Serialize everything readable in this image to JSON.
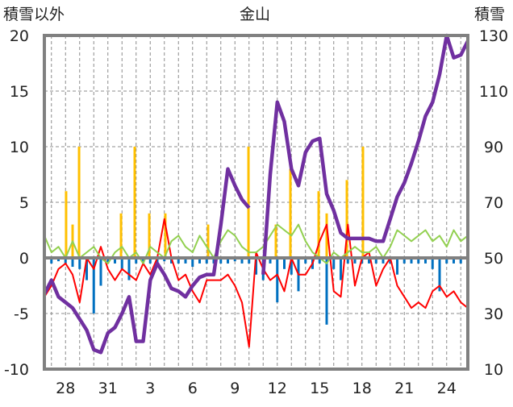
{
  "chart_data": {
    "type": "line",
    "title": "金山",
    "ylabel_left": "積雪以外",
    "ylabel_right": "積雪",
    "ylim_left": [
      -10,
      20
    ],
    "ylim_right": [
      10,
      130
    ],
    "yticks_left": [
      "20",
      "15",
      "10",
      "5",
      "0",
      "-5",
      "-10"
    ],
    "yticks_left_values": [
      20,
      15,
      10,
      5,
      0,
      -5,
      -10
    ],
    "yticks_right": [
      "130",
      "110",
      "90",
      "70",
      "50",
      "30",
      "10"
    ],
    "yticks_right_values": [
      130,
      110,
      90,
      70,
      50,
      30,
      10
    ],
    "xlim": [
      0,
      30
    ],
    "xticks": [
      "28",
      "31",
      "3",
      "6",
      "9",
      "12",
      "15",
      "18",
      "21",
      "24"
    ],
    "xticks_values": [
      1.5,
      4.5,
      7.5,
      10.5,
      13.5,
      16.5,
      19.5,
      22.5,
      25.5,
      28.5
    ],
    "grid": true,
    "x_start": 0,
    "x_step": 0.5,
    "series": [
      {
        "name": "red",
        "axis": "left",
        "kind": "line",
        "color": "#ff0000",
        "values": [
          -3.5,
          -2.5,
          -1,
          -0.5,
          -1.5,
          -4,
          0,
          -1,
          1,
          -1,
          -2,
          -1,
          -1.5,
          -2,
          -0.5,
          -1.5,
          0,
          3.5,
          0,
          -2,
          -1.5,
          -3,
          -4,
          -2,
          -2,
          -2,
          -1.5,
          -2.5,
          -4,
          -8,
          0.5,
          -1,
          -2,
          -1.5,
          -3,
          0,
          -1.5,
          -1.5,
          -0.5,
          1.5,
          3,
          -3,
          -3.5,
          3,
          -2.5,
          0,
          0.5,
          -2.5,
          -1,
          0,
          -2.5,
          -3.5,
          -4.5,
          -4,
          -4.5,
          -3,
          -2.5,
          -3.5,
          -3,
          -4,
          -4.5
        ]
      },
      {
        "name": "green",
        "axis": "left",
        "kind": "line",
        "color": "#92d050",
        "values": [
          2,
          0.5,
          1,
          0,
          1.5,
          0,
          0.5,
          1,
          0,
          -0.5,
          0.5,
          1,
          0,
          0.5,
          -0.5,
          1,
          0.5,
          0,
          1.5,
          2,
          1,
          0.5,
          2,
          1,
          0,
          1.5,
          2.5,
          2,
          1,
          0.5,
          0.5,
          1,
          2,
          3,
          2.5,
          2,
          3,
          1.5,
          0.5,
          0,
          -0.5,
          0.5,
          0,
          0.5,
          1,
          0.5,
          0.5,
          1,
          0,
          1,
          2.5,
          2,
          1.5,
          2,
          2.5,
          1.5,
          2,
          1,
          2.5,
          1.5,
          2
        ]
      },
      {
        "name": "blue",
        "axis": "left",
        "kind": "bar",
        "color": "#0070c0",
        "values": [
          -0.5,
          -0.5,
          -0.3,
          -0.5,
          -0.8,
          -1,
          -2,
          -5,
          -2.5,
          -0.5,
          -0.5,
          -1,
          -2,
          -0.5,
          -0.5,
          -0.5,
          -0.5,
          -0.3,
          -0.5,
          -0.5,
          -0.5,
          -0.8,
          -0.5,
          -0.5,
          -0.5,
          -0.5,
          -0.5,
          -0.3,
          -0.5,
          -0.5,
          -1.5,
          -2,
          -0.5,
          -4,
          -1,
          -1.5,
          -3,
          -0.5,
          -1,
          -0.5,
          -6,
          -1,
          -2,
          -0.5,
          -0.5,
          -0.5,
          -0.5,
          -0.5,
          -0.5,
          -0.5,
          -1.5,
          -0.5,
          -0.5,
          -0.5,
          -0.5,
          -1,
          -3,
          -0.5,
          -0.5,
          -0.5,
          -0.5
        ]
      },
      {
        "name": "snow-depth",
        "axis": "right",
        "kind": "line",
        "color": "#7030a0",
        "values": [
          37,
          42,
          36,
          34,
          32,
          28,
          24,
          17,
          16,
          23,
          25,
          30,
          36,
          20,
          20,
          42,
          48,
          44,
          39,
          38,
          36,
          40,
          43,
          44,
          44,
          62,
          82,
          76,
          71,
          68,
          null,
          44,
          80,
          106,
          99,
          82,
          76,
          88,
          92,
          93,
          73,
          67,
          59,
          57,
          57,
          57,
          57,
          56,
          56,
          64,
          72,
          77,
          84,
          92,
          101,
          106,
          116,
          130,
          122,
          123,
          128
        ]
      }
    ],
    "yellow_bars": {
      "name": "yellow",
      "axis": "left",
      "color": "#ffc000",
      "points": [
        [
          1.54,
          6
        ],
        [
          2,
          3
        ],
        [
          2.46,
          10
        ],
        [
          5.43,
          4
        ],
        [
          6.4,
          10
        ],
        [
          7.43,
          4
        ],
        [
          8.57,
          4
        ],
        [
          11.6,
          3
        ],
        [
          14.46,
          10
        ],
        [
          16.4,
          3
        ],
        [
          17.43,
          8
        ],
        [
          19.43,
          6
        ],
        [
          20,
          4
        ],
        [
          21.43,
          7
        ],
        [
          22.57,
          10
        ]
      ]
    }
  }
}
